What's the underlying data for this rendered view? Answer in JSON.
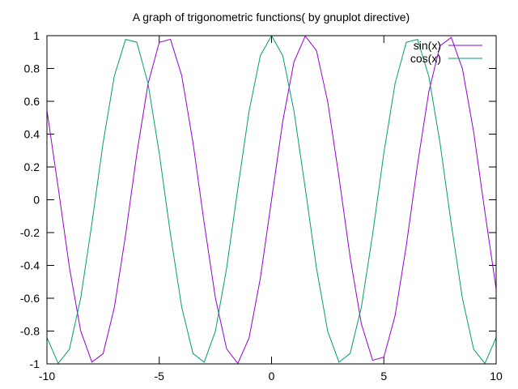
{
  "chart_data": {
    "type": "line",
    "title": "A graph of trigonometric functions( by gnuplot directive)",
    "xlabel": "",
    "ylabel": "",
    "xlim": [
      -10,
      10
    ],
    "ylim": [
      -1,
      1
    ],
    "grid": false,
    "legend_position": "top-right",
    "x_ticks": [
      {
        "value": -10,
        "label": "-10"
      },
      {
        "value": -5,
        "label": "-5"
      },
      {
        "value": 0,
        "label": "0"
      },
      {
        "value": 5,
        "label": "5"
      },
      {
        "value": 10,
        "label": "10"
      }
    ],
    "y_ticks": [
      {
        "value": 1,
        "label": "1"
      },
      {
        "value": 0.8,
        "label": "0.8"
      },
      {
        "value": 0.6,
        "label": "0.6"
      },
      {
        "value": 0.4,
        "label": "0.4"
      },
      {
        "value": 0.2,
        "label": "0.2"
      },
      {
        "value": 0,
        "label": "0"
      },
      {
        "value": -0.2,
        "label": "-0.2"
      },
      {
        "value": -0.4,
        "label": "-0.4"
      },
      {
        "value": -0.6,
        "label": "-0.6"
      },
      {
        "value": -0.8,
        "label": "-0.8"
      },
      {
        "value": -1,
        "label": "-1"
      }
    ],
    "x": [
      -10,
      -9.5,
      -9,
      -8.5,
      -8,
      -7.5,
      -7,
      -6.5,
      -6,
      -5.5,
      -5,
      -4.5,
      -4,
      -3.5,
      -3,
      -2.5,
      -2,
      -1.5,
      -1,
      -0.5,
      0,
      0.5,
      1,
      1.5,
      2,
      2.5,
      3,
      3.5,
      4,
      4.5,
      5,
      5.5,
      6,
      6.5,
      7,
      7.5,
      8,
      8.5,
      9,
      9.5,
      10
    ],
    "series": [
      {
        "name": "sin(x)",
        "color": "#9400d3",
        "values": [
          0.544,
          0.075,
          -0.412,
          -0.798,
          -0.989,
          -0.938,
          -0.657,
          -0.215,
          0.279,
          0.706,
          0.959,
          0.978,
          0.757,
          0.351,
          -0.141,
          -0.598,
          -0.909,
          -0.997,
          -0.841,
          -0.479,
          0,
          0.479,
          0.841,
          0.997,
          0.909,
          0.598,
          0.141,
          -0.351,
          -0.757,
          -0.978,
          -0.959,
          -0.706,
          -0.279,
          0.215,
          0.657,
          0.938,
          0.989,
          0.798,
          0.412,
          -0.075,
          -0.544
        ]
      },
      {
        "name": "cos(x)",
        "color": "#009e73",
        "values": [
          -0.839,
          -0.997,
          -0.911,
          -0.602,
          -0.146,
          0.347,
          0.754,
          0.977,
          0.96,
          0.709,
          0.284,
          -0.211,
          -0.654,
          -0.936,
          -0.99,
          -0.801,
          -0.416,
          0.071,
          0.54,
          0.878,
          1,
          0.878,
          0.54,
          0.071,
          -0.416,
          -0.801,
          -0.99,
          -0.936,
          -0.654,
          -0.211,
          0.284,
          0.709,
          0.96,
          0.977,
          0.754,
          0.347,
          -0.146,
          -0.602,
          -0.911,
          -0.997,
          -0.839
        ]
      }
    ]
  }
}
